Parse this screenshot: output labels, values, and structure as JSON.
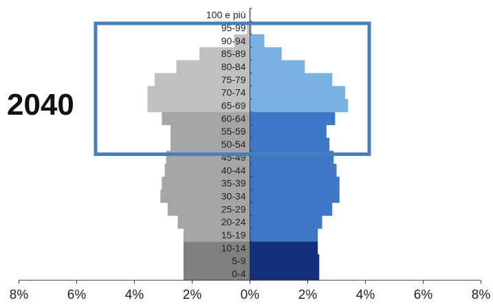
{
  "overlay_label": "2040",
  "chart_data": {
    "type": "bar",
    "orientation": "horizontal",
    "subtype": "population pyramid",
    "title": "",
    "xlabel": "",
    "ylabel": "",
    "xlim": [
      -8,
      8
    ],
    "x_ticks": [
      "8%",
      "6%",
      "4%",
      "2%",
      "0%",
      "2%",
      "4%",
      "6%",
      "8%"
    ],
    "categories": [
      "0-4",
      "5-9",
      "10-14",
      "15-19",
      "20-24",
      "25-29",
      "30-34",
      "35-39",
      "40-44",
      "45-49",
      "50-54",
      "55-59",
      "60-64",
      "65-69",
      "70-74",
      "75-79",
      "80-84",
      "85-89",
      "90-94",
      "95-99",
      "100 e più"
    ],
    "category_colors": {
      "left": [
        "#808080",
        "#808080",
        "#808080",
        "#a5a5a5",
        "#a5a5a5",
        "#a5a5a5",
        "#a5a5a5",
        "#a5a5a5",
        "#a5a5a5",
        "#a5a5a5",
        "#a5a5a5",
        "#a5a5a5",
        "#a5a5a5",
        "#c0c0c0",
        "#c0c0c0",
        "#c0c0c0",
        "#c0c0c0",
        "#c0c0c0",
        "#c0c0c0",
        "#c0c0c0",
        "#c0c0c0"
      ],
      "right": [
        "#132e7b",
        "#132e7b",
        "#132e7b",
        "#3d77c6",
        "#3d77c6",
        "#3d77c6",
        "#3d77c6",
        "#3d77c6",
        "#3d77c6",
        "#3d77c6",
        "#3d77c6",
        "#3d77c6",
        "#3d77c6",
        "#79b2e0",
        "#79b2e0",
        "#79b2e0",
        "#79b2e0",
        "#79b2e0",
        "#79b2e0",
        "#79b2e0",
        "#79b2e0"
      ]
    },
    "series": [
      {
        "side": "left",
        "values": [
          2.3,
          2.3,
          2.3,
          2.3,
          2.5,
          2.85,
          3.1,
          3.05,
          2.95,
          2.9,
          2.75,
          2.75,
          3.05,
          3.55,
          3.55,
          3.3,
          2.55,
          1.75,
          0.55,
          0.1,
          0.02
        ]
      },
      {
        "side": "right",
        "values": [
          2.4,
          2.4,
          2.35,
          2.35,
          2.5,
          2.85,
          3.1,
          3.1,
          3.0,
          2.9,
          2.75,
          2.65,
          2.95,
          3.4,
          3.3,
          2.85,
          1.9,
          1.1,
          0.5,
          0.05,
          0.02
        ]
      }
    ],
    "highlight_box": {
      "from_category": "50-54",
      "to_category": "95-99",
      "color": "#4a7ebb"
    }
  }
}
